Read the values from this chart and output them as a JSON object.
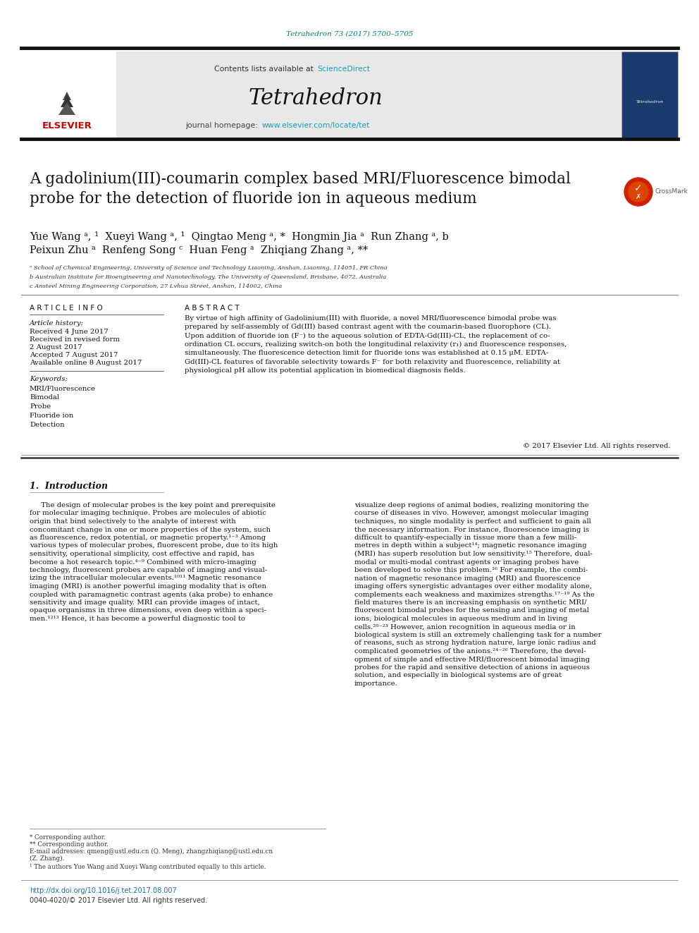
{
  "journal_ref": "Tetrahedron 73 (2017) 5700–5705",
  "journal_ref_color": "#008080",
  "journal_name": "Tetrahedron",
  "contents_text": "Contents lists available at ",
  "sciencedirect": "ScienceDirect",
  "sciencedirect_color": "#1a9fba",
  "homepage_text": "journal homepage: ",
  "homepage_url": "www.elsevier.com/locate/tet",
  "homepage_url_color": "#1a9fba",
  "article_title": "A gadolinium(III)-coumarin complex based MRI/Fluorescence bimodal\nprobe for the detection of fluoride ion in aqueous medium",
  "authors_line1": "Yue Wang ᵃ, ¹  Xueyi Wang ᵃ, ¹  Qingtao Meng ᵃ, *  Hongmin Jia ᵃ  Run Zhang ᵃ, b",
  "authors_line2": "Peixun Zhu ᵃ  Renfeng Song ᶜ  Huan Feng ᵃ  Zhiqiang Zhang ᵃ, **",
  "affiliation_a": "ᵃ School of Chemical Engineering, University of Science and Technology Liaoning, Anshan, Liaoning, 114051, PR China",
  "affiliation_b": "b Australian Institute for Bioengineering and Nanotechnology, The University of Queensland, Brisbane, 4072, Australia",
  "affiliation_c": "c Ansteel Mining Engineering Corporation, 27 Lvhua Street, Anshan, 114002, China",
  "article_info_title": "A R T I C L E  I N F O",
  "abstract_title": "A B S T R A C T",
  "article_history_label": "Article history:",
  "received": "Received 4 June 2017",
  "received_revised": "Received in revised form",
  "revised_date": "2 August 2017",
  "accepted": "Accepted 7 August 2017",
  "available": "Available online 8 August 2017",
  "keywords_label": "Keywords:",
  "keywords": [
    "MRI/Fluorescence",
    "Bimodal",
    "Probe",
    "Fluoride ion",
    "Detection"
  ],
  "abstract_text": "By virtue of high affinity of Gadolinium(III) with fluoride, a novel MRI/fluorescence bimodal probe was\nprepared by self-assembly of Gd(III) based contrast agent with the coumarin-based fluorophore (CL).\nUpon addition of fluoride ion (F⁻) to the aqueous solution of EDTA-Gd(III)-CL, the replacement of co-\nordination CL occurs, realizing switch-on both the longitudinal relaxivity (r₁) and fluorescence responses,\nsimultaneously. The fluorescence detection limit for fluoride ions was established at 0.15 μM. EDTA-\nGd(III)-CL features of favorable selectivity towards F⁻ for both relaxivity and fluorescence, reliability at\nphysiological pH allow its potential application in biomedical diagnosis fields.",
  "copyright": "© 2017 Elsevier Ltd. All rights reserved.",
  "intro_heading": "1.  Introduction",
  "intro_col1_lines": [
    "     The design of molecular probes is the key point and prerequisite",
    "for molecular imaging technique. Probes are molecules of abiotic",
    "origin that bind selectively to the analyte of interest with",
    "concomitant change in one or more properties of the system, such",
    "as fluorescence, redox potential, or magnetic property.¹⁻³ Among",
    "various types of molecular probes, fluorescent probe, due to its high",
    "sensitivity, operational simplicity, cost effective and rapid, has",
    "become a hot research topic.⁴⁻⁹ Combined with micro-imaging",
    "technology, fluorescent probes are capable of imaging and visual-",
    "izing the intracellular molecular events.¹⁰¹¹ Magnetic resonance",
    "imaging (MRI) is another powerful imaging modality that is often",
    "coupled with paramagnetic contrast agents (aka probe) to enhance",
    "sensitivity and image quality. MRI can provide images of intact,",
    "opaque organisms in three dimensions, even deep within a speci-",
    "men.¹²¹³ Hence, it has become a powerful diagnostic tool to"
  ],
  "intro_col2_lines": [
    "visualize deep regions of animal bodies, realizing monitoring the",
    "course of diseases in vivo. However, amongst molecular imaging",
    "techniques, no single modality is perfect and sufficient to gain all",
    "the necessary information. For instance, fluorescence imaging is",
    "difficult to quantify-especially in tissue more than a few milli-",
    "metres in depth within a subject¹⁴; magnetic resonance imaging",
    "(MRI) has superb resolution but low sensitivity.¹⁵ Therefore, dual-",
    "modal or multi-modal contrast agents or imaging probes have",
    "been developed to solve this problem.¹⁶ For example, the combi-",
    "nation of magnetic resonance imaging (MRI) and fluorescence",
    "imaging offers synergistic advantages over either modality alone,",
    "complements each weakness and maximizes strengths.¹⁷⁻¹⁹ As the",
    "field matures there is an increasing emphasis on synthetic MRI/",
    "fluorescent bimodal probes for the sensing and imaging of metal",
    "ions, biological molecules in aqueous medium and in living",
    "cells.²⁰⁻²³ However, anion recognition in aqueous media or in",
    "biological system is still an extremely challenging task for a number",
    "of reasons, such as strong hydration nature, large ionic radius and",
    "complicated geometries of the anions.²⁴⁻²⁶ Therefore, the devel-",
    "opment of simple and effective MRI/fluorescent bimodal imaging",
    "probes for the rapid and sensitive detection of anions in aqueous",
    "solution, and especially in biological systems are of great",
    "importance."
  ],
  "footnote_star": "* Corresponding author.",
  "footnote_dstar": "** Corresponding author.",
  "footnote_email": "E-mail addresses: qmeng@ustl.edu.cn (Q. Meng), zhangzhiqiang@ustl.edu.cn",
  "footnote_email2": "(Z. Zhang).",
  "footnote_1": "¹ The authors Yue Wang and Xueyi Wang contributed equally to this article.",
  "doi_text": "http://dx.doi.org/10.1016/j.tet.2017.08.007",
  "doi_color": "#1a6faa",
  "issn_text": "0040-4020/© 2017 Elsevier Ltd. All rights reserved.",
  "bg_color": "#ffffff",
  "text_color": "#000000",
  "header_bg": "#e8e8e8",
  "divider_color": "#111111",
  "elsevier_red": "#cc0000"
}
